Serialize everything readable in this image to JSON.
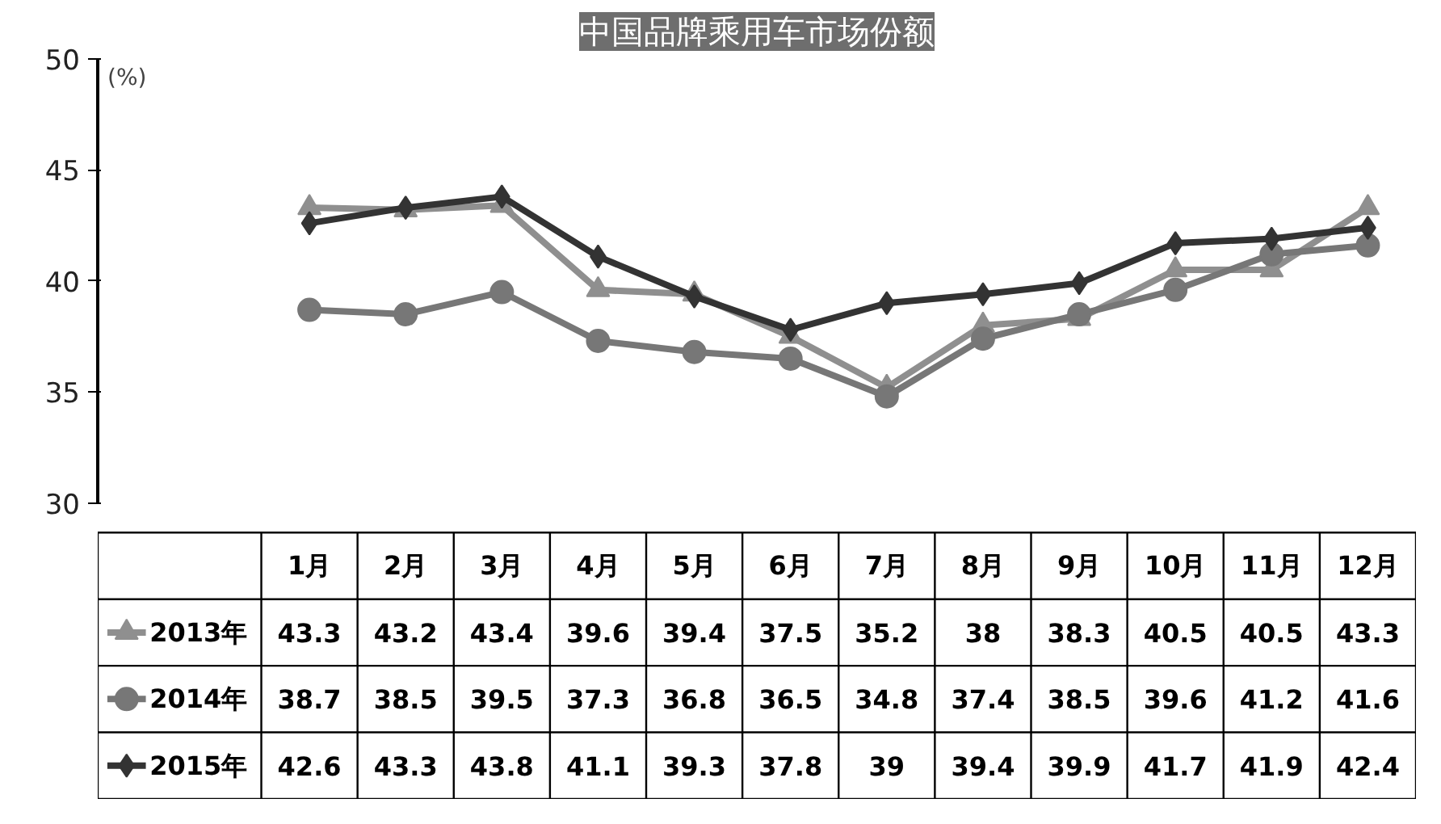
{
  "chart_data": {
    "type": "line",
    "title": "中国品牌乘用车市场份额",
    "ylabel": "(%)",
    "categories": [
      "1月",
      "2月",
      "3月",
      "4月",
      "5月",
      "6月",
      "7月",
      "8月",
      "9月",
      "10月",
      "11月",
      "12月"
    ],
    "series": [
      {
        "name": "2013年",
        "color": "#8f8f8f",
        "marker": "triangle",
        "values": [
          43.3,
          43.2,
          43.4,
          39.6,
          39.4,
          37.5,
          35.2,
          38,
          38.3,
          40.5,
          40.5,
          43.3
        ]
      },
      {
        "name": "2014年",
        "color": "#777777",
        "marker": "circle",
        "values": [
          38.7,
          38.5,
          39.5,
          37.3,
          36.8,
          36.5,
          34.8,
          37.4,
          38.5,
          39.6,
          41.2,
          41.6
        ]
      },
      {
        "name": "2015年",
        "color": "#333333",
        "marker": "diamond",
        "values": [
          42.6,
          43.3,
          43.8,
          41.1,
          39.3,
          37.8,
          39,
          39.4,
          39.9,
          41.7,
          41.9,
          42.4
        ]
      }
    ],
    "ylim": [
      30,
      50
    ],
    "yticks": [
      30,
      35,
      40,
      45,
      50
    ],
    "grid": false,
    "legend": "bottom",
    "data_labels": true,
    "line_style": "solid"
  }
}
